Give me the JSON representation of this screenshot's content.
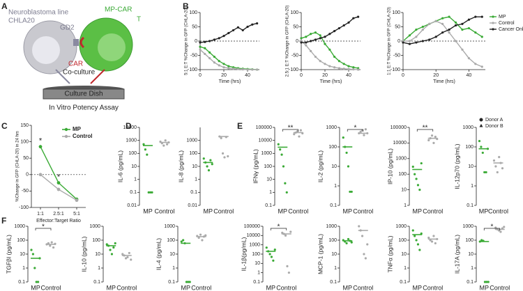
{
  "panel_labels": [
    "A",
    "B",
    "C",
    "D",
    "E",
    "F"
  ],
  "panel_a": {
    "cell_line": "Neuroblastoma line",
    "cell_name": "CHLA20",
    "antigen": "GD2",
    "effector": "MP-CAR",
    "effector_2": "T",
    "receptor": "CAR",
    "process": "Co-culture",
    "dish": "Culture Dish",
    "assay": "In Vitro Potency Assay"
  },
  "donor_legend": [
    "Donor A",
    "Donor B"
  ],
  "chart_data": [
    {
      "type": "line",
      "ylabel": "5:1 E:T %Change in GFP (CHLA-20)",
      "xlabel": "Time (hrs)",
      "x": [
        0,
        4,
        8,
        12,
        16,
        20,
        24,
        28,
        32,
        36,
        40,
        44,
        48
      ],
      "xlim": [
        0,
        50
      ],
      "xticks": [
        0,
        20,
        40
      ],
      "ylim": [
        -100,
        100
      ],
      "yticks": [
        -100,
        -50,
        0,
        50,
        100
      ],
      "hline": 0,
      "series": [
        {
          "color": "#3aaa35",
          "values": [
            -20,
            -25,
            -40,
            -55,
            -70,
            -80,
            -88,
            -92,
            -95,
            -97,
            -98,
            -99,
            -100
          ]
        },
        {
          "color": "#aaaaaa",
          "values": [
            -30,
            -45,
            -60,
            -75,
            -85,
            -92,
            -95,
            -97,
            -98,
            -99,
            -100,
            -100,
            -100
          ]
        },
        {
          "color": "#222222",
          "values": [
            -5,
            -3,
            0,
            5,
            10,
            18,
            28,
            38,
            48,
            38,
            50,
            58,
            62
          ]
        }
      ]
    },
    {
      "type": "line",
      "ylabel": "2.5:1 E:T %Change in GFP (CHLA-20)",
      "xlabel": "Time (hrs)",
      "x": [
        0,
        4,
        8,
        12,
        16,
        20,
        24,
        28,
        32,
        36,
        40,
        44,
        48
      ],
      "xlim": [
        0,
        50
      ],
      "xticks": [
        0,
        20,
        40
      ],
      "ylim": [
        -100,
        100
      ],
      "yticks": [
        -100,
        -50,
        0,
        50,
        100
      ],
      "hline": 0,
      "series": [
        {
          "color": "#3aaa35",
          "values": [
            10,
            15,
            25,
            30,
            20,
            -10,
            -30,
            -55,
            -70,
            -80,
            -88,
            -92,
            -95
          ]
        },
        {
          "color": "#aaaaaa",
          "values": [
            0,
            -15,
            -35,
            -55,
            -70,
            -80,
            -88,
            -92,
            -95,
            -97,
            -98,
            -99,
            -100
          ]
        },
        {
          "color": "#222222",
          "values": [
            -5,
            -5,
            0,
            5,
            10,
            15,
            25,
            35,
            45,
            55,
            65,
            80,
            85
          ]
        }
      ]
    },
    {
      "type": "line",
      "ylabel": "1:1 E:T %Change in GFP (CHLA-20)",
      "xlabel": "Time (hrs)",
      "x": [
        0,
        4,
        8,
        12,
        16,
        20,
        24,
        28,
        32,
        36,
        40,
        44,
        48
      ],
      "xlim": [
        0,
        50
      ],
      "xticks": [
        0,
        20,
        40
      ],
      "ylim": [
        -100,
        100
      ],
      "yticks": [
        -100,
        -50,
        0,
        50,
        100
      ],
      "hline": 0,
      "legend": "right",
      "series": [
        {
          "name": "MP",
          "color": "#3aaa35",
          "values": [
            0,
            20,
            40,
            50,
            60,
            70,
            80,
            85,
            65,
            40,
            45,
            30,
            15
          ]
        },
        {
          "name": "Control",
          "color": "#aaaaaa",
          "values": [
            0,
            0,
            15,
            40,
            60,
            70,
            60,
            30,
            0,
            -30,
            -60,
            -80,
            -90
          ]
        },
        {
          "name": "Cancer Only",
          "color": "#222222",
          "values": [
            -5,
            -10,
            -5,
            0,
            5,
            15,
            30,
            40,
            55,
            60,
            75,
            85,
            85
          ]
        }
      ]
    },
    {
      "type": "line",
      "ylabel": "%Change in GFP (CHLA-20) in 24 hrs",
      "xlabel": "Effector:Target Ratio",
      "categories": [
        "1:1",
        "2.5:1",
        "5:1"
      ],
      "ylim": [
        -100,
        150
      ],
      "yticks": [
        -100,
        -50,
        0,
        50,
        100,
        150
      ],
      "hline": 0,
      "legend": "top-right",
      "significance": [
        "*",
        "*",
        null
      ],
      "series": [
        {
          "name": "MP",
          "color": "#3aaa35",
          "values": [
            85,
            -25,
            -75
          ]
        },
        {
          "name": "Control",
          "color": "#aaaaaa",
          "values": [
            0,
            -45,
            -78
          ]
        }
      ]
    },
    {
      "type": "strip",
      "ylabel": "IL-6 (pg/mL)",
      "categories": [
        "MP",
        "Control"
      ],
      "log": true,
      "ylim": [
        0.01,
        10000
      ],
      "yticks": [
        0.01,
        0.1,
        1,
        10,
        100,
        1000,
        10000
      ],
      "series": [
        {
          "color": "#3aaa35",
          "values": [
            500,
            200,
            80,
            0.1,
            0.1,
            0.1
          ],
          "mean": 400
        },
        {
          "color": "#aaaaaa",
          "values": [
            800,
            600,
            400,
            1000,
            500,
            700
          ],
          "mean": 700
        }
      ]
    },
    {
      "type": "strip",
      "ylabel": "IL-8 (pg/mL)",
      "categories": [
        "MP",
        "Control"
      ],
      "log": true,
      "ylim": [
        0.01,
        10000
      ],
      "yticks": [
        0.01,
        0.1,
        1,
        10,
        100,
        1000
      ],
      "series": [
        {
          "color": "#3aaa35",
          "values": [
            40,
            20,
            10,
            5,
            30,
            15
          ],
          "mean": 20
        },
        {
          "color": "#aaaaaa",
          "values": [
            2000,
            1500,
            100,
            50,
            1800,
            60
          ],
          "mean": 2000
        }
      ]
    },
    {
      "type": "strip",
      "ylabel": "IFNγ (pg/mL)",
      "categories": [
        "MP",
        "Control"
      ],
      "log": true,
      "ylim": [
        0.1,
        100000
      ],
      "yticks": [
        0.1,
        1,
        10,
        100,
        1000,
        10000,
        100000
      ],
      "significance": "**",
      "series": [
        {
          "color": "#3aaa35",
          "values": [
            5000,
            2000,
            800,
            100,
            5,
            1
          ],
          "mean": 3000
        },
        {
          "color": "#aaaaaa",
          "values": [
            30000,
            40000,
            50000,
            20000,
            60000,
            35000
          ],
          "mean": 40000
        }
      ]
    },
    {
      "type": "strip",
      "ylabel": "IL-2 (pg/mL)",
      "categories": [
        "MP",
        "Control"
      ],
      "log": true,
      "ylim": [
        0.1,
        1000
      ],
      "yticks": [
        0.1,
        1,
        10,
        100,
        1000
      ],
      "significance": "*",
      "series": [
        {
          "color": "#3aaa35",
          "values": [
            300,
            100,
            50,
            10,
            0.5,
            0.5
          ],
          "mean": 100
        },
        {
          "color": "#aaaaaa",
          "values": [
            500,
            600,
            700,
            400,
            800,
            500
          ],
          "mean": 500
        }
      ]
    },
    {
      "type": "strip",
      "ylabel": "IP-10 (pg/mL)",
      "categories": [
        "MP",
        "Control"
      ],
      "log": true,
      "ylim": [
        1,
        100000
      ],
      "yticks": [
        1,
        10,
        100,
        1000,
        10000,
        100000
      ],
      "significance": "**",
      "series": [
        {
          "color": "#3aaa35",
          "values": [
            300,
            100,
            50,
            20,
            10,
            500
          ],
          "mean": 200
        },
        {
          "color": "#aaaaaa",
          "values": [
            15000,
            20000,
            30000,
            10000,
            25000,
            18000
          ],
          "mean": 20000
        }
      ]
    },
    {
      "type": "strip",
      "ylabel": "IL-12p70 (pg/mL)",
      "categories": [
        "MP",
        "Control"
      ],
      "log": true,
      "ylim": [
        0.1,
        1000
      ],
      "yticks": [
        0.1,
        1,
        10,
        100,
        1000
      ],
      "series": [
        {
          "color": "#3aaa35",
          "values": [
            200,
            100,
            50,
            5,
            5,
            80
          ],
          "mean": 80
        },
        {
          "color": "#aaaaaa",
          "values": [
            20,
            10,
            5,
            30,
            15,
            8
          ],
          "mean": 15
        }
      ]
    },
    {
      "type": "strip",
      "ylabel": "TGFβI (pg/mL)",
      "categories": [
        "MP",
        "Control"
      ],
      "log": true,
      "ylim": [
        0.1,
        1000
      ],
      "yticks": [
        0.1,
        1,
        10,
        100,
        1000
      ],
      "significance": "*",
      "series": [
        {
          "color": "#3aaa35",
          "values": [
            20,
            10,
            1,
            0.1,
            0.1,
            5
          ],
          "mean": 5
        },
        {
          "color": "#aaaaaa",
          "values": [
            50,
            60,
            40,
            70,
            30,
            55
          ],
          "mean": 50
        }
      ]
    },
    {
      "type": "strip",
      "ylabel": "IL-10 (pg/mL)",
      "categories": [
        "MP",
        "Control"
      ],
      "log": true,
      "ylim": [
        0.1,
        1000
      ],
      "yticks": [
        0.1,
        1,
        10,
        100,
        1000
      ],
      "series": [
        {
          "color": "#3aaa35",
          "values": [
            50,
            40,
            20,
            10,
            30,
            60
          ],
          "mean": 40
        },
        {
          "color": "#aaaaaa",
          "values": [
            10,
            8,
            5,
            6,
            12,
            4
          ],
          "mean": 8
        }
      ]
    },
    {
      "type": "strip",
      "ylabel": "IL-4 (pg/mL)",
      "categories": [
        "MP",
        "Control"
      ],
      "log": true,
      "ylim": [
        0.1,
        1000
      ],
      "yticks": [
        0.1,
        1,
        10,
        100,
        1000
      ],
      "series": [
        {
          "color": "#3aaa35",
          "values": [
            80,
            100,
            60,
            0.1,
            0.1,
            0.1
          ],
          "mean": 60
        },
        {
          "color": "#aaaaaa",
          "values": [
            200,
            150,
            250,
            100,
            180,
            220
          ],
          "mean": 180
        }
      ]
    },
    {
      "type": "strip",
      "ylabel": "IL-1β(pg/mL)",
      "categories": [
        "MP",
        "Control"
      ],
      "log": true,
      "ylim": [
        0.1,
        100000
      ],
      "yticks": [
        0.1,
        1,
        10,
        100,
        1000,
        10000,
        100000
      ],
      "significance": "*",
      "series": [
        {
          "color": "#3aaa35",
          "values": [
            500,
            200,
            100,
            50,
            20,
            300
          ],
          "mean": 200
        },
        {
          "color": "#aaaaaa",
          "values": [
            20000,
            15000,
            10000,
            5,
            1,
            25000
          ],
          "mean": 15000
        }
      ]
    },
    {
      "type": "strip",
      "ylabel": "MCP-1 (pg/mL)",
      "categories": [
        "MP",
        "Control"
      ],
      "log": true,
      "ylim": [
        0.1,
        1000
      ],
      "yticks": [
        0.1,
        1,
        10,
        100,
        1000
      ],
      "series": [
        {
          "color": "#3aaa35",
          "values": [
            100,
            80,
            60,
            120,
            90,
            70
          ],
          "mean": 90
        },
        {
          "color": "#aaaaaa",
          "values": [
            1000,
            500,
            200,
            10,
            5,
            50
          ],
          "mean": 500
        }
      ]
    },
    {
      "type": "strip",
      "ylabel": "TNFα (pg/mL)",
      "categories": [
        "MP",
        "Control"
      ],
      "log": true,
      "ylim": [
        0.1,
        1000
      ],
      "yticks": [
        0.1,
        1,
        10,
        100,
        1000
      ],
      "series": [
        {
          "color": "#3aaa35",
          "values": [
            500,
            200,
            100,
            50,
            20,
            300
          ],
          "mean": 250
        },
        {
          "color": "#aaaaaa",
          "values": [
            150,
            100,
            80,
            200,
            60,
            120
          ],
          "mean": 120
        }
      ]
    },
    {
      "type": "strip",
      "ylabel": "IL-17A (pg/mL)",
      "categories": [
        "MP",
        "Control"
      ],
      "log": true,
      "ylim": [
        0.1,
        1000
      ],
      "yticks": [
        0.1,
        1,
        10,
        100,
        1000
      ],
      "significance": "*",
      "series": [
        {
          "color": "#3aaa35",
          "values": [
            80,
            100,
            90,
            0.1,
            0.1,
            0.1
          ],
          "mean": 80
        },
        {
          "color": "#aaaaaa",
          "values": [
            800,
            600,
            500,
            400,
            700,
            900
          ],
          "mean": 600
        }
      ]
    }
  ]
}
